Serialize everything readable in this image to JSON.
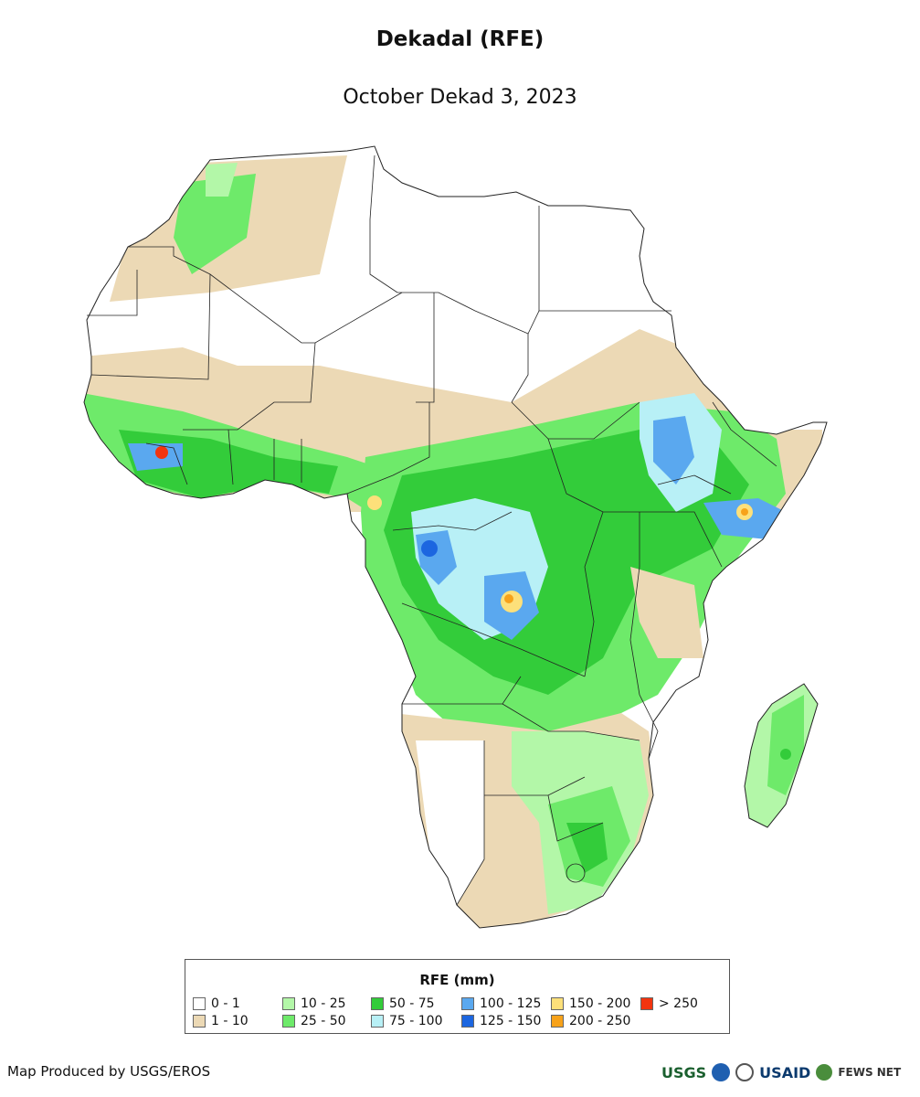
{
  "header": {
    "title": "Dekadal (RFE)",
    "subtitle": "October Dekad 3, 2023"
  },
  "legend": {
    "title": "RFE (mm)",
    "items": [
      {
        "label": "0 - 1",
        "color": "#ffffff"
      },
      {
        "label": "1 - 10",
        "color": "#ecd9b5"
      },
      {
        "label": "10 - 25",
        "color": "#b3f7a8"
      },
      {
        "label": "25 - 50",
        "color": "#6eea6a"
      },
      {
        "label": "50 - 75",
        "color": "#33cc3a"
      },
      {
        "label": "75 - 100",
        "color": "#b8f0f6"
      },
      {
        "label": "100 - 125",
        "color": "#5aa8ef"
      },
      {
        "label": "125 - 150",
        "color": "#1c66e0"
      },
      {
        "label": "150 - 200",
        "color": "#fde07a"
      },
      {
        "label": "200 - 250",
        "color": "#f7a21a"
      },
      {
        "label": "> 250",
        "color": "#f2340f"
      }
    ]
  },
  "footer": {
    "credit": "Map Produced by USGS/EROS",
    "logos": [
      "USGS",
      "USAID",
      "FEWS NET"
    ]
  },
  "colors": {
    "outline": "#222222"
  }
}
